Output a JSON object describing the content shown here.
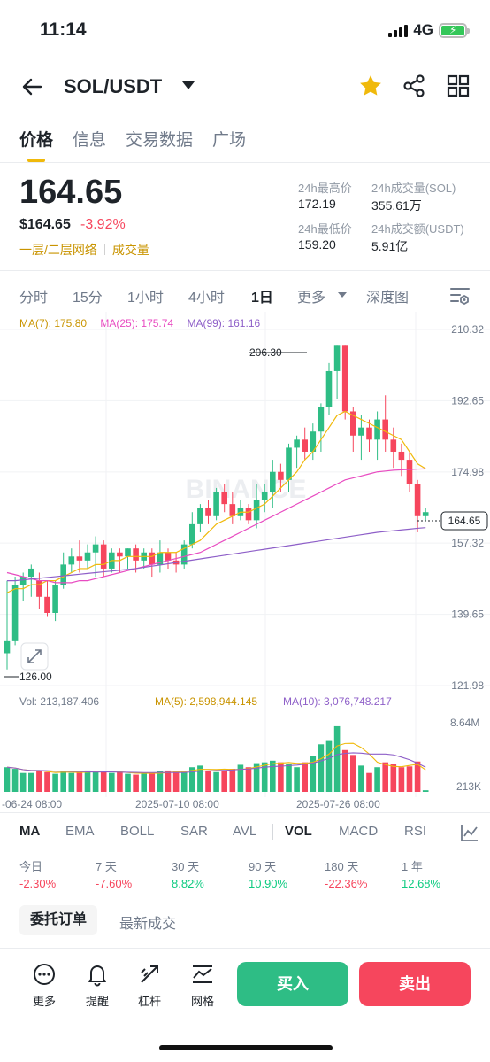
{
  "status": {
    "time": "11:14",
    "network": "4G"
  },
  "header": {
    "pair": "SOL/USDT"
  },
  "tabs": [
    "价格",
    "信息",
    "交易数据",
    "广场"
  ],
  "price": {
    "last": "164.65",
    "usd": "$164.65",
    "change": "-3.92%",
    "tag1": "一层/二层网络",
    "tag2": "成交量"
  },
  "stats": {
    "high_label": "24h最高价",
    "high": "172.19",
    "low_label": "24h最低价",
    "low": "159.20",
    "vol_label": "24h成交量(SOL)",
    "vol": "355.61万",
    "amt_label": "24h成交额(USDT)",
    "amt": "5.91亿"
  },
  "intervals": [
    "分时",
    "15分",
    "1小时",
    "4小时",
    "1日",
    "更多",
    "深度图"
  ],
  "active_interval": "1日",
  "ma_legend": {
    "ma7": "MA(7): 175.80",
    "ma25": "MA(25): 175.74",
    "ma99": "MA(99): 161.16"
  },
  "vol_legend": {
    "vol": "Vol: 213,187.406",
    "ma5": "MA(5): 2,598,944.145",
    "ma10": "MA(10): 3,076,748.217"
  },
  "chart_labels": {
    "high_marker": "206.30",
    "low_marker": "126.00",
    "current": "164.65",
    "watermark": "BINANCE",
    "price_ticks": [
      "210.32",
      "192.65",
      "174.98",
      "157.32",
      "139.65",
      "121.98"
    ],
    "vol_ticks": [
      "8.64M",
      "213K"
    ],
    "date_ticks": [
      "-06-24 08:00",
      "2025-07-10 08:00",
      "2025-07-26 08:00"
    ]
  },
  "colors": {
    "up": "#2ebd85",
    "down": "#f6465d",
    "ma7": "#f0b90b",
    "ma25": "#e84bc1",
    "ma99": "#8e5fc8",
    "accent": "#f0b90b"
  },
  "indicators": [
    "MA",
    "EMA",
    "BOLL",
    "SAR",
    "AVL",
    "VOL",
    "MACD",
    "RSI"
  ],
  "performance": [
    {
      "label": "今日",
      "value": "-2.30%"
    },
    {
      "label": "7 天",
      "value": "-7.60%"
    },
    {
      "label": "30 天",
      "value": "8.82%"
    },
    {
      "label": "90 天",
      "value": "10.90%"
    },
    {
      "label": "180 天",
      "value": "-22.36%"
    },
    {
      "label": "1 年",
      "value": "12.68%"
    }
  ],
  "order_tabs": [
    "委托订单",
    "最新成交"
  ],
  "bottom_actions": [
    "更多",
    "提醒",
    "杠杆",
    "网格"
  ],
  "buy_label": "买入",
  "sell_label": "卖出",
  "chart_data": {
    "type": "candlestick",
    "price_axis": [
      121.98,
      210.32
    ],
    "candles": [
      [
        130,
        133,
        126,
        148
      ],
      [
        133,
        147,
        132,
        149
      ],
      [
        147,
        149,
        143,
        150
      ],
      [
        149,
        151,
        144,
        152
      ],
      [
        148,
        144,
        141,
        150
      ],
      [
        144,
        140,
        139,
        148
      ],
      [
        140,
        147,
        138,
        148
      ],
      [
        147,
        152,
        146,
        155
      ],
      [
        152,
        154,
        150,
        156
      ],
      [
        154,
        153,
        150,
        158
      ],
      [
        153,
        155,
        151,
        157
      ],
      [
        155,
        157,
        149,
        159
      ],
      [
        157,
        151,
        149,
        158
      ],
      [
        151,
        155,
        150,
        156
      ],
      [
        155,
        154,
        150,
        156
      ],
      [
        154,
        156,
        151,
        156
      ],
      [
        156,
        153,
        150,
        157
      ],
      [
        153,
        155,
        151,
        156
      ],
      [
        155,
        152,
        149,
        156
      ],
      [
        152,
        155,
        150,
        158
      ],
      [
        155,
        153,
        151,
        156
      ],
      [
        153,
        152,
        150,
        155
      ],
      [
        152,
        157,
        151,
        158
      ],
      [
        157,
        162,
        156,
        165
      ],
      [
        162,
        166,
        160,
        167
      ],
      [
        166,
        164,
        162,
        168
      ],
      [
        164,
        170,
        163,
        171
      ],
      [
        170,
        167,
        165,
        172
      ],
      [
        167,
        164,
        162,
        170
      ],
      [
        164,
        166,
        163,
        168
      ],
      [
        166,
        163,
        162,
        167
      ],
      [
        163,
        168,
        161,
        172
      ],
      [
        168,
        170,
        165,
        172
      ],
      [
        170,
        175,
        166,
        178
      ],
      [
        175,
        173,
        170,
        177
      ],
      [
        173,
        181,
        170,
        182
      ],
      [
        181,
        183,
        176,
        184
      ],
      [
        183,
        180,
        178,
        186
      ],
      [
        180,
        185,
        178,
        187
      ],
      [
        185,
        191,
        180,
        192
      ],
      [
        191,
        200,
        189,
        202
      ],
      [
        200,
        206.3,
        193,
        206.3
      ],
      [
        206.3,
        190,
        188,
        206.3
      ],
      [
        190,
        184,
        180,
        191
      ],
      [
        184,
        186,
        178,
        189
      ],
      [
        186,
        183,
        180,
        188
      ],
      [
        183,
        188,
        178,
        190
      ],
      [
        188,
        183,
        180,
        194
      ],
      [
        183,
        180,
        176,
        186
      ],
      [
        180,
        178,
        174,
        182
      ],
      [
        178,
        172,
        170,
        180
      ],
      [
        172,
        164,
        160,
        173
      ],
      [
        164,
        165,
        163,
        166
      ]
    ],
    "ma7": [
      145,
      146,
      146,
      147,
      147,
      148,
      148,
      149,
      150,
      151,
      151,
      152,
      152,
      153,
      153,
      154,
      154,
      154,
      154,
      155,
      155,
      155,
      156,
      157,
      158,
      160,
      162,
      163,
      164,
      165,
      165,
      166,
      167,
      169,
      171,
      173,
      175,
      178,
      180,
      183,
      186,
      189,
      190,
      189,
      188,
      187,
      186,
      185,
      184,
      183,
      180,
      177,
      175.8
    ],
    "ma25": [
      150,
      149.5,
      149,
      148.5,
      148,
      148,
      147.5,
      147.5,
      147.5,
      148,
      148,
      148.5,
      149,
      149.5,
      150,
      150.5,
      151,
      151.5,
      152,
      152.5,
      153,
      153.5,
      154,
      154.5,
      155,
      156,
      157,
      158,
      159,
      160,
      161,
      162,
      163,
      164,
      165,
      166,
      167,
      168,
      169,
      170,
      171,
      172,
      173,
      173.5,
      174,
      174.5,
      175,
      175.2,
      175.4,
      175.5,
      175.6,
      175.7,
      175.74
    ],
    "ma99": [
      148,
      148,
      148.2,
      148.4,
      148.6,
      148.8,
      149,
      149.2,
      149.4,
      149.6,
      149.8,
      150,
      150.2,
      150.4,
      150.6,
      150.8,
      151,
      151.3,
      151.6,
      151.9,
      152.2,
      152.5,
      152.8,
      153.1,
      153.4,
      153.7,
      154,
      154.3,
      154.6,
      154.9,
      155.2,
      155.5,
      155.8,
      156.1,
      156.4,
      156.7,
      157,
      157.3,
      157.6,
      157.9,
      158.2,
      158.5,
      158.8,
      159.1,
      159.4,
      159.7,
      160,
      160.2,
      160.4,
      160.6,
      160.8,
      161,
      161.16
    ],
    "volume_axis": [
      0,
      8.64
    ],
    "volume_millions": [
      3.0,
      2.8,
      2.3,
      2.3,
      2.6,
      2.4,
      2.2,
      2.5,
      2.3,
      2.4,
      2.6,
      2.5,
      2.4,
      2.3,
      2.4,
      2.2,
      2.1,
      2.3,
      2.3,
      2.5,
      2.6,
      2.5,
      2.4,
      3.0,
      3.2,
      2.6,
      2.4,
      2.6,
      2.8,
      3.3,
      3.0,
      3.5,
      3.6,
      3.8,
      3.6,
      3.4,
      3.0,
      3.6,
      4.4,
      5.8,
      6.2,
      8.0,
      5.1,
      4.5,
      3.2,
      2.3,
      3.0,
      3.6,
      3.4,
      3.0,
      3.1,
      3.7,
      0.2
    ]
  }
}
